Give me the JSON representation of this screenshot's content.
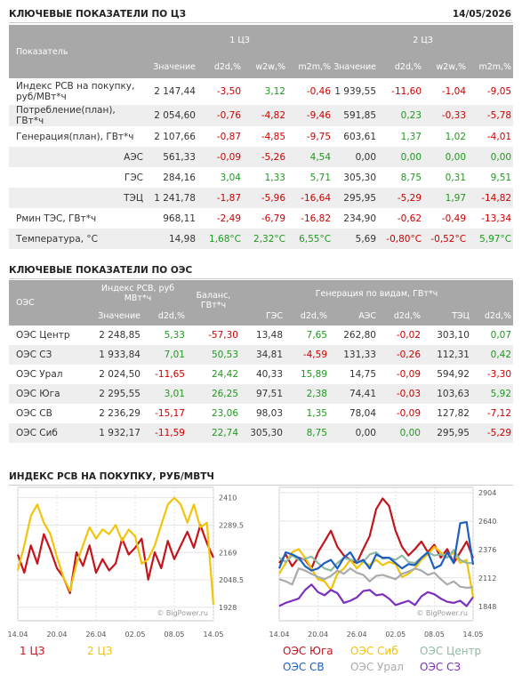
{
  "section1": {
    "title": "КЛЮЧЕВЫЕ ПОКАЗАТЕЛИ ПО ЦЗ",
    "date": "14/05/2026"
  },
  "table1": {
    "header": {
      "label": "Показатель",
      "groups": [
        "1 ЦЗ",
        "2 ЦЗ"
      ],
      "columns": [
        "Значение",
        "d2d,%",
        "w2w,%",
        "m2m,%",
        "Значение",
        "d2d,%",
        "w2w,%",
        "m2m,%"
      ]
    },
    "rows": [
      [
        "Индекс РСВ на покупку, руб/МВт*ч",
        "2 147,44",
        "-3,50",
        "3,12",
        "-0,46",
        "1 939,55",
        "-11,60",
        "-1,04",
        "-9,05"
      ],
      [
        "Потребление(план), ГВт*ч",
        "2 054,60",
        "-0,76",
        "-4,82",
        "-9,46",
        "591,85",
        "0,23",
        "-0,33",
        "-5,78"
      ],
      [
        "Генерация(план), ГВт*ч",
        "2 107,66",
        "-0,87",
        "-4,85",
        "-9,75",
        "603,61",
        "1,37",
        "1,02",
        "-4,01"
      ],
      [
        "АЭС",
        "561,33",
        "-0,09",
        "-5,26",
        "4,54",
        "0,00",
        "0,00",
        "0,00",
        "0,00"
      ],
      [
        "ГЭС",
        "284,16",
        "3,04",
        "1,33",
        "5,71",
        "305,30",
        "8,75",
        "0,31",
        "9,51"
      ],
      [
        "ТЭЦ",
        "1 241,78",
        "-1,87",
        "-5,96",
        "-16,64",
        "295,95",
        "-5,29",
        "1,97",
        "-14,82"
      ],
      [
        "Рмин ТЭС, ГВт*ч",
        "968,11",
        "-2,49",
        "-6,79",
        "-16,82",
        "234,90",
        "-0,62",
        "-0,49",
        "-13,34"
      ],
      [
        "Температура, °С",
        "14,98",
        "1,68°C",
        "2,32°C",
        "6,55°C",
        "5,69",
        "-0,80°C",
        "-0,52°C",
        "5,97°C"
      ]
    ]
  },
  "section2": {
    "title": "КЛЮЧЕВЫЕ ПОКАЗАТЕЛИ ПО ОЭС"
  },
  "table2": {
    "header": {
      "label": "ОЭС",
      "index_group": "Индекс РСВ, руб МВт*ч",
      "balance": "Баланс, ГВт*ч",
      "generation_group": "Генерация по видам, ГВт*ч",
      "columns": [
        "Значение",
        "d2d,%",
        "ГЭС",
        "d2d,%",
        "АЭС",
        "d2d,%",
        "ТЭЦ",
        "d2d,%"
      ]
    },
    "rows": [
      [
        "ОЭС Центр",
        "2 248,85",
        "5,33",
        "-57,30",
        "13,48",
        "7,65",
        "262,80",
        "-0,02",
        "303,10",
        "0,07"
      ],
      [
        "ОЭС СЗ",
        "1 933,84",
        "7,01",
        "50,53",
        "34,81",
        "-4,59",
        "131,33",
        "-0,26",
        "112,31",
        "0,42"
      ],
      [
        "ОЭС Урал",
        "2 024,50",
        "-11,65",
        "24,42",
        "40,33",
        "15,89",
        "14,75",
        "-0,09",
        "594,92",
        "-3,30"
      ],
      [
        "ОЭС Юга",
        "2 295,55",
        "3,01",
        "26,25",
        "97,51",
        "2,38",
        "74,41",
        "-0,03",
        "103,63",
        "5,92"
      ],
      [
        "ОЭС СВ",
        "2 236,29",
        "-15,17",
        "23,06",
        "98,03",
        "1,35",
        "78,04",
        "-0,09",
        "127,82",
        "-7,12"
      ],
      [
        "ОЭС Сиб",
        "1 932,17",
        "-11,59",
        "22,74",
        "305,30",
        "8,75",
        "0,00",
        "0,00",
        "295,95",
        "-5,29"
      ]
    ]
  },
  "section3": {
    "title": "ИНДЕКС РСВ НА ПОКУПКУ, РУБ/МВТЧ"
  },
  "chart_data": [
    {
      "type": "line",
      "watermark": "© BigPower.ru",
      "categories": [
        "14.04",
        null,
        null,
        null,
        null,
        null,
        "20.04",
        null,
        null,
        null,
        null,
        null,
        "26.04",
        null,
        null,
        null,
        null,
        null,
        "02.05",
        null,
        null,
        null,
        null,
        null,
        "08.05",
        null,
        null,
        null,
        null,
        null,
        "14.05"
      ],
      "ylim": [
        1900,
        2440
      ],
      "yticks": [
        1928,
        2048.5,
        2169,
        2289.5,
        2410
      ],
      "grid": true,
      "series": [
        {
          "name": "1 ЦЗ",
          "color": "#c4141c",
          "values": [
            2160,
            2080,
            2200,
            2120,
            2250,
            2180,
            2100,
            2060,
            1990,
            2170,
            2110,
            2200,
            2080,
            2140,
            2090,
            2120,
            2230,
            2160,
            2190,
            2230,
            2050,
            2170,
            2100,
            2220,
            2140,
            2200,
            2260,
            2190,
            2290,
            2210,
            2147
          ]
        },
        {
          "name": "2 ЦЗ",
          "color": "#f2c40c",
          "values": [
            2090,
            2200,
            2330,
            2380,
            2300,
            2250,
            2150,
            2060,
            2000,
            2120,
            2200,
            2280,
            2230,
            2270,
            2250,
            2290,
            2220,
            2270,
            2240,
            2120,
            2140,
            2200,
            2290,
            2380,
            2410,
            2380,
            2300,
            2380,
            2280,
            2300,
            1940
          ]
        }
      ]
    },
    {
      "type": "line",
      "watermark": "© BigPower.ru",
      "categories": [
        "14.04",
        null,
        null,
        null,
        null,
        null,
        "20.04",
        null,
        null,
        null,
        null,
        null,
        "26.04",
        null,
        null,
        null,
        null,
        null,
        "02.05",
        null,
        null,
        null,
        null,
        null,
        "08.05",
        null,
        null,
        null,
        null,
        null,
        "14.05"
      ],
      "ylim": [
        1780,
        2920
      ],
      "yticks": [
        1848,
        2112,
        2376,
        2640,
        2904
      ],
      "grid": true,
      "series": [
        {
          "name": "ОЭС Юга",
          "color": "#c4141c",
          "values": [
            2250,
            2330,
            2220,
            2300,
            2280,
            2200,
            2350,
            2450,
            2550,
            2400,
            2320,
            2280,
            2250,
            2380,
            2500,
            2750,
            2850,
            2780,
            2550,
            2400,
            2320,
            2380,
            2450,
            2350,
            2420,
            2300,
            2380,
            2250,
            2350,
            2450,
            2296
          ]
        },
        {
          "name": "ОЭС Сиб",
          "color": "#f2c40c",
          "values": [
            2150,
            2250,
            2350,
            2380,
            2300,
            2200,
            2100,
            2080,
            2000,
            2150,
            2200,
            2280,
            2200,
            2260,
            2230,
            2280,
            2230,
            2260,
            2240,
            2120,
            2150,
            2200,
            2280,
            2330,
            2400,
            2350,
            2300,
            2350,
            2250,
            2280,
            1932
          ]
        },
        {
          "name": "ОЭС Центр",
          "color": "#8fb9a2",
          "values": [
            2300,
            2260,
            2320,
            2280,
            2290,
            2310,
            2250,
            2200,
            2180,
            2250,
            2300,
            2280,
            2270,
            2260,
            2330,
            2350,
            2290,
            2300,
            2280,
            2320,
            2260,
            2250,
            2300,
            2350,
            2320,
            2330,
            2300,
            2370,
            2280,
            2250,
            2249
          ]
        },
        {
          "name": "ОЭС СВ",
          "color": "#1f5fbf",
          "values": [
            2200,
            2350,
            2330,
            2300,
            2220,
            2180,
            2200,
            2250,
            2280,
            2200,
            2300,
            2350,
            2250,
            2280,
            2200,
            2330,
            2300,
            2300,
            2250,
            2200,
            2240,
            2230,
            2300,
            2350,
            2200,
            2230,
            2350,
            2250,
            2620,
            2630,
            2236
          ]
        },
        {
          "name": "ОЭС Урал",
          "color": "#aaaaaa",
          "values": [
            2100,
            2080,
            2050,
            2200,
            2180,
            2150,
            2120,
            2100,
            2130,
            2180,
            2150,
            2200,
            2160,
            2140,
            2080,
            2130,
            2140,
            2120,
            2100,
            2150,
            2170,
            2200,
            2180,
            2140,
            2160,
            2100,
            2050,
            2080,
            2030,
            2020,
            2025
          ]
        },
        {
          "name": "ОЭС СЗ",
          "color": "#7b2fbf",
          "values": [
            1850,
            1880,
            1900,
            1920,
            2000,
            2050,
            1980,
            1950,
            2000,
            1970,
            1880,
            1900,
            1930,
            1990,
            2000,
            1950,
            1960,
            1920,
            1860,
            1880,
            1900,
            1860,
            1940,
            1980,
            1960,
            1920,
            1890,
            1880,
            1900,
            1850,
            1934
          ]
        }
      ]
    }
  ]
}
